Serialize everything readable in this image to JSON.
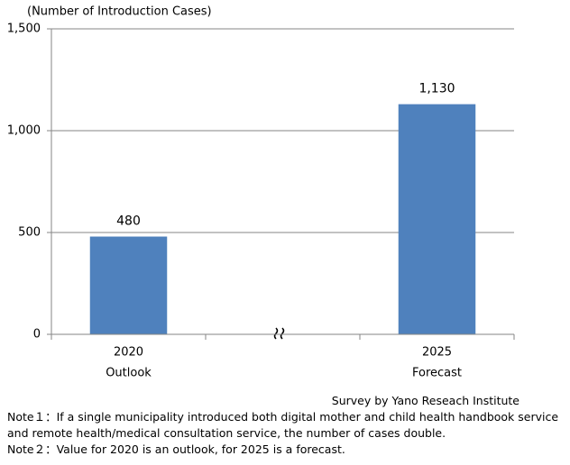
{
  "chart_data": {
    "type": "bar",
    "y_axis_label": "(Number of Introduction Cases)",
    "categories": [
      "2020",
      null,
      "2025"
    ],
    "category_sublabels": [
      "Outlook",
      null,
      "Forecast"
    ],
    "values": [
      480,
      null,
      1130
    ],
    "value_labels": [
      "480",
      null,
      "1,130"
    ],
    "color": "#4f81bd",
    "ylim": [
      0,
      1500
    ],
    "yticks": [
      0,
      500,
      {
        "value": 1000,
        "label": "1,000"
      },
      {
        "value": 1500,
        "label": "1,500"
      }
    ],
    "grid": true,
    "source": "Survey by Yano Reseach Institute",
    "notes": [
      "Note１：If a single municipality introduced both digital mother and child health handbook service",
      "and remote health/medical consultation service, the number of cases double.",
      "Note２：Value for 2020 is an outlook, for 2025 is a forecast."
    ]
  }
}
